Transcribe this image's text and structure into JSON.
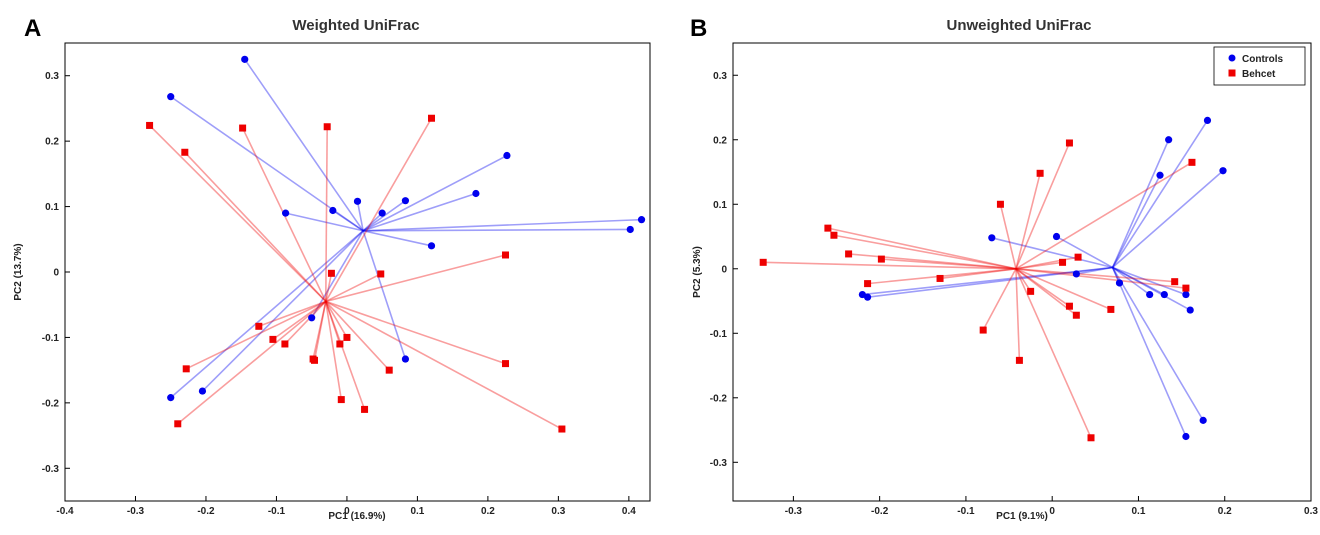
{
  "colors": {
    "controls": "#0000ee",
    "behcet": "#ee0000"
  },
  "chart_data": [
    {
      "type": "scatter",
      "panel": "A",
      "title": "Weighted UniFrac",
      "xlabel": "PC1 (16.9%)",
      "ylabel": "PC2 (13.7%)",
      "xlim": [
        -0.4,
        0.43
      ],
      "ylim": [
        -0.35,
        0.35
      ],
      "xticks": [
        -0.4,
        -0.3,
        -0.2,
        -0.1,
        0,
        0.1,
        0.2,
        0.3,
        0.4
      ],
      "xtick_labels": [
        "-0.4",
        "-0.3",
        "-0.2",
        "-0.1",
        "0",
        "0.1",
        "0.2",
        "0.3",
        "0.4"
      ],
      "yticks": [
        -0.3,
        -0.2,
        -0.1,
        0,
        0.1,
        0.2,
        0.3
      ],
      "ytick_labels": [
        "-0.3",
        "-0.2",
        "-0.1",
        "0",
        "0.1",
        "0.2",
        "0.3"
      ],
      "grid": false,
      "series": [
        {
          "name": "Controls",
          "marker": "circle",
          "centroid": [
            0.023,
            0.063
          ],
          "points": [
            [
              -0.145,
              0.325
            ],
            [
              -0.25,
              0.268
            ],
            [
              -0.087,
              0.09
            ],
            [
              -0.02,
              0.094
            ],
            [
              0.015,
              0.108
            ],
            [
              0.05,
              0.09
            ],
            [
              0.083,
              0.109
            ],
            [
              0.183,
              0.12
            ],
            [
              0.227,
              0.178
            ],
            [
              0.12,
              0.04
            ],
            [
              0.418,
              0.08
            ],
            [
              0.402,
              0.065
            ],
            [
              -0.05,
              -0.07
            ],
            [
              0.083,
              -0.133
            ],
            [
              -0.25,
              -0.192
            ],
            [
              -0.205,
              -0.182
            ]
          ]
        },
        {
          "name": "Behcet",
          "marker": "square",
          "centroid": [
            -0.03,
            -0.045
          ],
          "points": [
            [
              -0.28,
              0.224
            ],
            [
              -0.23,
              0.183
            ],
            [
              -0.148,
              0.22
            ],
            [
              -0.028,
              0.222
            ],
            [
              0.12,
              0.235
            ],
            [
              -0.022,
              -0.002
            ],
            [
              0.048,
              -0.003
            ],
            [
              0.225,
              0.026
            ],
            [
              -0.125,
              -0.083
            ],
            [
              -0.105,
              -0.103
            ],
            [
              -0.088,
              -0.11
            ],
            [
              -0.048,
              -0.133
            ],
            [
              -0.046,
              -0.135
            ],
            [
              -0.01,
              -0.11
            ],
            [
              0,
              -0.1
            ],
            [
              0.06,
              -0.15
            ],
            [
              -0.228,
              -0.148
            ],
            [
              -0.24,
              -0.232
            ],
            [
              -0.008,
              -0.195
            ],
            [
              0.025,
              -0.21
            ],
            [
              0.225,
              -0.14
            ],
            [
              0.305,
              -0.24
            ]
          ]
        }
      ]
    },
    {
      "type": "scatter",
      "panel": "B",
      "title": "Unweighted UniFrac",
      "xlabel": "PC1 (9.1%)",
      "ylabel": "PC2 (5.3%)",
      "xlim": [
        -0.37,
        0.3
      ],
      "ylim": [
        -0.36,
        0.35
      ],
      "xticks": [
        -0.3,
        -0.2,
        -0.1,
        0,
        0.1,
        0.2,
        0.3
      ],
      "xtick_labels": [
        "-0.3",
        "-0.2",
        "-0.1",
        "0",
        "0.1",
        "0.2",
        "0.3"
      ],
      "yticks": [
        -0.3,
        -0.2,
        -0.1,
        0,
        0.1,
        0.2,
        0.3
      ],
      "ytick_labels": [
        "-0.3",
        "-0.2",
        "-0.1",
        "0",
        "0.1",
        "0.2",
        "0.3"
      ],
      "grid": false,
      "legend": {
        "position": "top-right",
        "entries": [
          "Controls",
          "Behcet"
        ]
      },
      "series": [
        {
          "name": "Controls",
          "marker": "circle",
          "centroid": [
            0.07,
            0.002
          ],
          "points": [
            [
              0.18,
              0.23
            ],
            [
              0.135,
              0.2
            ],
            [
              0.125,
              0.145
            ],
            [
              0.198,
              0.152
            ],
            [
              -0.07,
              0.048
            ],
            [
              0.005,
              0.05
            ],
            [
              0.028,
              -0.008
            ],
            [
              0.078,
              -0.022
            ],
            [
              0.113,
              -0.04
            ],
            [
              0.13,
              -0.04
            ],
            [
              0.155,
              -0.04
            ],
            [
              0.16,
              -0.064
            ],
            [
              -0.22,
              -0.04
            ],
            [
              -0.214,
              -0.044
            ],
            [
              0.155,
              -0.26
            ],
            [
              0.175,
              -0.235
            ]
          ]
        },
        {
          "name": "Behcet",
          "marker": "square",
          "centroid": [
            -0.042,
            0.0
          ],
          "points": [
            [
              0.02,
              0.195
            ],
            [
              -0.014,
              0.148
            ],
            [
              -0.06,
              0.1
            ],
            [
              0.162,
              0.165
            ],
            [
              -0.26,
              0.063
            ],
            [
              -0.253,
              0.052
            ],
            [
              -0.236,
              0.023
            ],
            [
              -0.198,
              0.015
            ],
            [
              -0.335,
              0.01
            ],
            [
              -0.214,
              -0.023
            ],
            [
              -0.13,
              -0.015
            ],
            [
              0.012,
              0.01
            ],
            [
              0.03,
              0.018
            ],
            [
              -0.025,
              -0.035
            ],
            [
              0.02,
              -0.058
            ],
            [
              0.028,
              -0.072
            ],
            [
              0.068,
              -0.063
            ],
            [
              0.142,
              -0.02
            ],
            [
              0.155,
              -0.03
            ],
            [
              -0.08,
              -0.095
            ],
            [
              -0.038,
              -0.142
            ],
            [
              0.045,
              -0.262
            ]
          ]
        }
      ]
    }
  ]
}
